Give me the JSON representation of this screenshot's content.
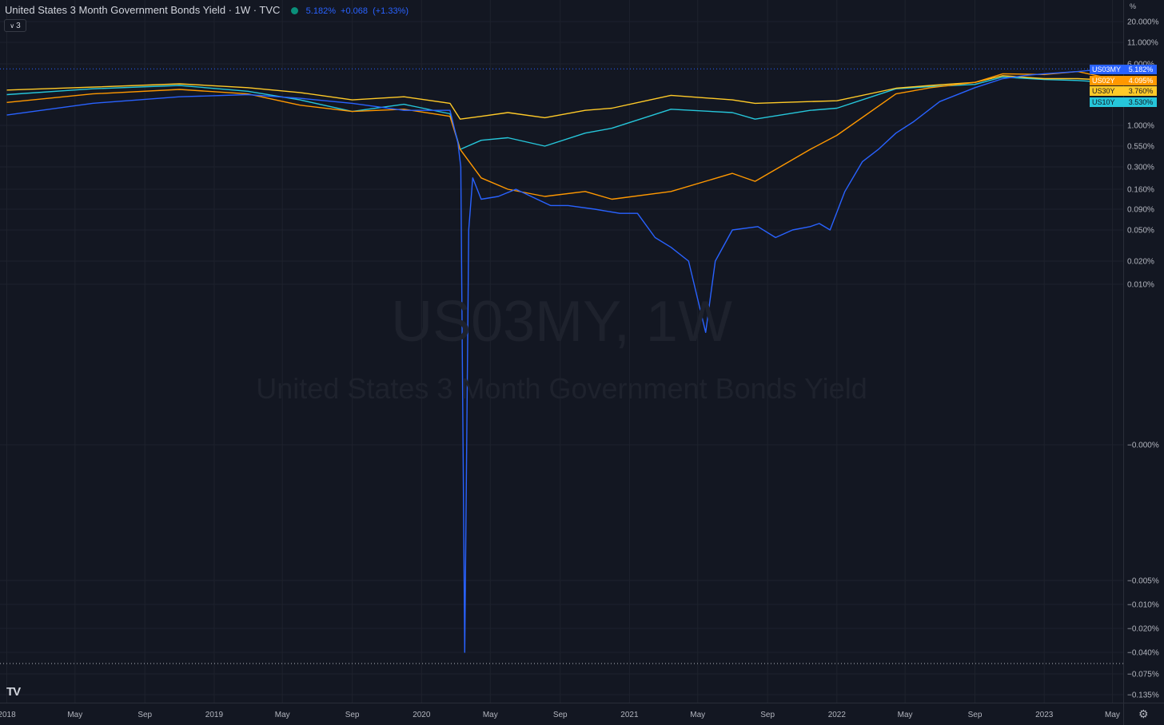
{
  "header": {
    "title": "United States 3 Month Government Bonds Yield · 1W · TVC",
    "last": "5.182%",
    "change": "+0.068",
    "change_pct": "(+1.33%)"
  },
  "collapse_count": "3",
  "watermark": {
    "symbol": "US03MY, 1W",
    "name": "United States 3 Month Government Bonds Yield"
  },
  "axis": {
    "unit": "%"
  },
  "logo_text": "TV",
  "chart_data": {
    "type": "line",
    "y_scale": "log",
    "grid": true,
    "title": "United States 3 Month Government Bonds Yield",
    "xlabel": "",
    "ylabel": "%",
    "xlim": [
      "2017-12-20",
      "2023-05-20"
    ],
    "y_ticks": [
      "20.000%",
      "11.000%",
      "6.000%",
      "1.000%",
      "0.550%",
      "0.300%",
      "0.160%",
      "0.090%",
      "0.050%",
      "0.020%",
      "0.010%",
      "−0.000%",
      "−0.005%",
      "−0.010%",
      "−0.020%",
      "−0.040%",
      "−0.075%",
      "−0.135%"
    ],
    "x_ticks": [
      "2018",
      "May",
      "Sep",
      "2019",
      "May",
      "Sep",
      "2020",
      "May",
      "Sep",
      "2021",
      "May",
      "Sep",
      "2022",
      "May",
      "Sep",
      "2023",
      "May"
    ],
    "series": [
      {
        "name": "US10Y",
        "color": "#26c6da",
        "last_label": "3.530%",
        "x": [
          "2018-01-01",
          "2018-06-01",
          "2018-11-01",
          "2019-03-01",
          "2019-06-01",
          "2019-09-01",
          "2019-12-01",
          "2020-02-20",
          "2020-03-09",
          "2020-04-15",
          "2020-06-01",
          "2020-08-05",
          "2020-10-15",
          "2020-12-01",
          "2021-03-15",
          "2021-07-01",
          "2021-08-10",
          "2021-11-15",
          "2022-01-01",
          "2022-04-15",
          "2022-06-15",
          "2022-09-01",
          "2022-10-20",
          "2023-01-01",
          "2023-03-01",
          "2023-04-15"
        ],
        "y": [
          2.45,
          2.9,
          3.2,
          2.7,
          2.1,
          1.5,
          1.85,
          1.4,
          0.5,
          0.65,
          0.7,
          0.55,
          0.8,
          0.92,
          1.6,
          1.45,
          1.2,
          1.55,
          1.65,
          2.9,
          3.1,
          3.3,
          4.1,
          3.8,
          3.7,
          3.53
        ]
      },
      {
        "name": "US30Y",
        "color": "#ffca28",
        "last_label": "3.760%",
        "x": [
          "2018-01-01",
          "2018-06-01",
          "2018-11-01",
          "2019-03-01",
          "2019-06-01",
          "2019-09-01",
          "2019-12-01",
          "2020-02-20",
          "2020-03-09",
          "2020-04-15",
          "2020-06-01",
          "2020-08-05",
          "2020-10-15",
          "2020-12-01",
          "2021-03-15",
          "2021-07-01",
          "2021-08-10",
          "2021-11-15",
          "2022-01-01",
          "2022-04-15",
          "2022-06-15",
          "2022-09-01",
          "2022-10-20",
          "2023-01-01",
          "2023-03-01",
          "2023-04-15"
        ],
        "y": [
          2.8,
          3.05,
          3.35,
          3.0,
          2.6,
          2.1,
          2.3,
          1.9,
          1.2,
          1.3,
          1.45,
          1.25,
          1.55,
          1.65,
          2.4,
          2.1,
          1.9,
          2.0,
          2.05,
          2.95,
          3.2,
          3.5,
          4.25,
          3.9,
          3.9,
          3.76
        ]
      },
      {
        "name": "US02Y",
        "color": "#ff9800",
        "last_label": "4.095%",
        "x": [
          "2018-01-01",
          "2018-06-01",
          "2018-11-01",
          "2019-03-01",
          "2019-06-01",
          "2019-09-01",
          "2019-12-01",
          "2020-02-20",
          "2020-03-09",
          "2020-04-15",
          "2020-06-01",
          "2020-08-05",
          "2020-10-15",
          "2020-12-01",
          "2021-03-15",
          "2021-07-01",
          "2021-08-10",
          "2021-11-15",
          "2022-01-01",
          "2022-04-15",
          "2022-06-15",
          "2022-09-01",
          "2022-10-20",
          "2023-01-01",
          "2023-03-01",
          "2023-04-15"
        ],
        "y": [
          1.95,
          2.5,
          2.85,
          2.5,
          1.8,
          1.5,
          1.6,
          1.3,
          0.5,
          0.22,
          0.16,
          0.13,
          0.15,
          0.12,
          0.15,
          0.25,
          0.2,
          0.5,
          0.75,
          2.5,
          3.0,
          3.5,
          4.5,
          4.4,
          4.8,
          4.095
        ]
      },
      {
        "name": "US03MY",
        "color": "#2962ff",
        "last_label": "5.182%",
        "x": [
          "2018-01-01",
          "2018-06-01",
          "2018-11-01",
          "2019-03-01",
          "2019-06-01",
          "2019-09-01",
          "2019-12-01",
          "2020-02-20",
          "2020-03-05",
          "2020-03-10",
          "2020-03-17",
          "2020-03-24",
          "2020-03-31",
          "2020-04-15",
          "2020-05-15",
          "2020-06-15",
          "2020-08-15",
          "2020-09-15",
          "2020-11-01",
          "2020-12-15",
          "2021-01-15",
          "2021-02-15",
          "2021-03-15",
          "2021-04-15",
          "2021-05-15",
          "2021-06-01",
          "2021-07-01",
          "2021-08-15",
          "2021-09-15",
          "2021-10-15",
          "2021-11-15",
          "2021-12-01",
          "2021-12-20",
          "2022-01-15",
          "2022-02-15",
          "2022-03-15",
          "2022-04-15",
          "2022-05-15",
          "2022-07-01",
          "2022-09-01",
          "2022-10-20",
          "2022-12-01",
          "2023-01-01",
          "2023-03-01",
          "2023-04-20"
        ],
        "y": [
          1.35,
          1.9,
          2.3,
          2.45,
          2.2,
          1.9,
          1.55,
          1.55,
          0.6,
          0.3,
          -0.04,
          0.05,
          0.22,
          0.12,
          0.13,
          0.16,
          0.1,
          0.1,
          0.09,
          0.08,
          0.08,
          0.04,
          0.03,
          0.02,
          0.007,
          0.02,
          0.05,
          0.055,
          0.04,
          0.05,
          0.055,
          0.06,
          0.05,
          0.15,
          0.35,
          0.5,
          0.8,
          1.1,
          2.0,
          3.0,
          3.9,
          4.3,
          4.5,
          4.8,
          5.182
        ]
      }
    ]
  }
}
